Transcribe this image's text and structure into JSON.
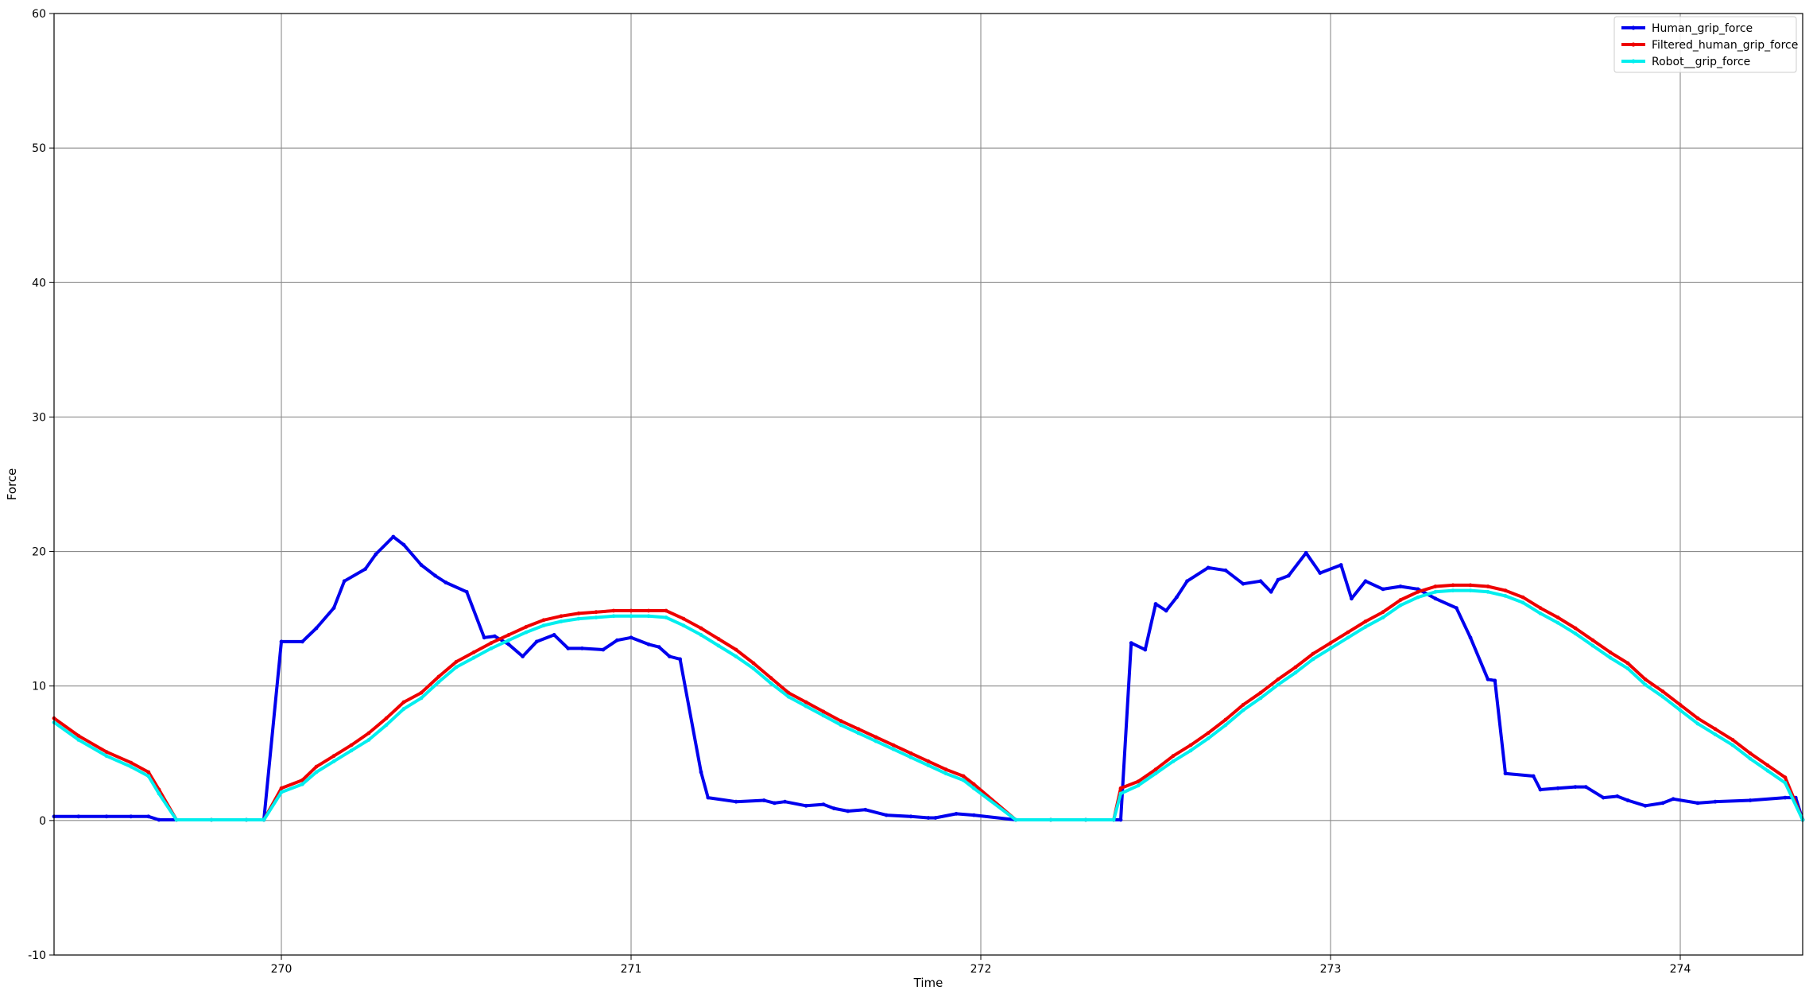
{
  "chart_data": {
    "type": "line",
    "title": "",
    "xlabel": "Time",
    "ylabel": "Force",
    "xlim": [
      269.35,
      274.35
    ],
    "ylim": [
      -10,
      60
    ],
    "xticks": [
      270,
      271,
      272,
      273,
      274
    ],
    "yticks": [
      -10,
      0,
      10,
      20,
      30,
      40,
      50,
      60
    ],
    "grid": true,
    "legend_position": "top-right",
    "series": [
      {
        "name": "Human_grip_force",
        "color": "#0000ee",
        "x": [
          269.35,
          269.42,
          269.5,
          269.57,
          269.62,
          269.65,
          269.7,
          269.8,
          269.9,
          269.95,
          270.0,
          270.06,
          270.1,
          270.15,
          270.18,
          270.24,
          270.27,
          270.32,
          270.35,
          270.4,
          270.44,
          270.47,
          270.53,
          270.58,
          270.61,
          270.65,
          270.69,
          270.73,
          270.78,
          270.82,
          270.86,
          270.92,
          270.96,
          271.0,
          271.05,
          271.08,
          271.11,
          271.14,
          271.2,
          271.22,
          271.3,
          271.38,
          271.41,
          271.44,
          271.5,
          271.55,
          271.58,
          271.62,
          271.67,
          271.73,
          271.8,
          271.85,
          271.87,
          271.93,
          271.98,
          272.1,
          272.2,
          272.3,
          272.38,
          272.4,
          272.43,
          272.47,
          272.5,
          272.53,
          272.56,
          272.59,
          272.65,
          272.7,
          272.75,
          272.8,
          272.83,
          272.85,
          272.88,
          272.93,
          272.97,
          273.03,
          273.06,
          273.1,
          273.15,
          273.2,
          273.25,
          273.3,
          273.36,
          273.4,
          273.45,
          273.47,
          273.5,
          273.58,
          273.6,
          273.65,
          273.7,
          273.73,
          273.78,
          273.82,
          273.85,
          273.9,
          273.95,
          273.98,
          274.05,
          274.1,
          274.2,
          274.3,
          274.33,
          274.35
        ],
        "values": [
          0.3,
          0.3,
          0.3,
          0.3,
          0.3,
          0.05,
          0.05,
          0.05,
          0.05,
          0.05,
          13.3,
          13.3,
          14.3,
          15.8,
          17.8,
          18.7,
          19.8,
          21.1,
          20.5,
          19.0,
          18.2,
          17.7,
          17.0,
          13.6,
          13.7,
          13.1,
          12.2,
          13.3,
          13.8,
          12.8,
          12.8,
          12.7,
          13.4,
          13.6,
          13.1,
          12.9,
          12.2,
          12.0,
          3.6,
          1.7,
          1.4,
          1.5,
          1.3,
          1.4,
          1.1,
          1.2,
          0.9,
          0.7,
          0.8,
          0.4,
          0.3,
          0.2,
          0.2,
          0.5,
          0.4,
          0.05,
          0.05,
          0.05,
          0.05,
          0.05,
          13.2,
          12.7,
          16.1,
          15.6,
          16.6,
          17.8,
          18.8,
          18.6,
          17.6,
          17.8,
          17.0,
          17.9,
          18.2,
          19.9,
          18.4,
          19.0,
          16.5,
          17.8,
          17.2,
          17.4,
          17.2,
          16.5,
          15.8,
          13.6,
          10.5,
          10.4,
          3.5,
          3.3,
          2.3,
          2.4,
          2.5,
          2.5,
          1.7,
          1.8,
          1.5,
          1.1,
          1.3,
          1.6,
          1.3,
          1.4,
          1.5,
          1.7,
          1.7,
          0.05
        ]
      },
      {
        "name": "Filtered_human_grip_force",
        "color": "#ee0000",
        "x": [
          269.35,
          269.42,
          269.5,
          269.57,
          269.62,
          269.65,
          269.7,
          269.8,
          269.9,
          269.95,
          270.0,
          270.06,
          270.1,
          270.15,
          270.2,
          270.25,
          270.3,
          270.35,
          270.4,
          270.45,
          270.5,
          270.55,
          270.6,
          270.65,
          270.7,
          270.75,
          270.8,
          270.85,
          270.9,
          270.95,
          271.0,
          271.05,
          271.1,
          271.15,
          271.2,
          271.25,
          271.3,
          271.35,
          271.4,
          271.45,
          271.5,
          271.55,
          271.6,
          271.65,
          271.7,
          271.75,
          271.8,
          271.85,
          271.9,
          271.95,
          271.98,
          272.1,
          272.2,
          272.3,
          272.38,
          272.4,
          272.45,
          272.5,
          272.55,
          272.6,
          272.65,
          272.7,
          272.75,
          272.8,
          272.85,
          272.9,
          272.95,
          273.0,
          273.05,
          273.1,
          273.15,
          273.2,
          273.25,
          273.3,
          273.35,
          273.4,
          273.45,
          273.5,
          273.55,
          273.6,
          273.65,
          273.7,
          273.75,
          273.8,
          273.85,
          273.9,
          273.95,
          274.0,
          274.05,
          274.1,
          274.15,
          274.2,
          274.25,
          274.3,
          274.35
        ],
        "values": [
          7.6,
          6.3,
          5.1,
          4.3,
          3.6,
          2.3,
          0.05,
          0.05,
          0.05,
          0.05,
          2.4,
          3.0,
          4.0,
          4.8,
          5.6,
          6.5,
          7.6,
          8.8,
          9.5,
          10.7,
          11.8,
          12.5,
          13.2,
          13.8,
          14.4,
          14.9,
          15.2,
          15.4,
          15.5,
          15.6,
          15.6,
          15.6,
          15.6,
          15.0,
          14.3,
          13.5,
          12.7,
          11.7,
          10.6,
          9.5,
          8.8,
          8.1,
          7.4,
          6.8,
          6.2,
          5.6,
          5.0,
          4.4,
          3.8,
          3.3,
          2.7,
          0.05,
          0.05,
          0.05,
          0.05,
          2.4,
          2.9,
          3.8,
          4.8,
          5.6,
          6.5,
          7.5,
          8.6,
          9.5,
          10.5,
          11.4,
          12.4,
          13.2,
          14.0,
          14.8,
          15.5,
          16.4,
          17.0,
          17.4,
          17.5,
          17.5,
          17.4,
          17.1,
          16.6,
          15.8,
          15.1,
          14.3,
          13.4,
          12.5,
          11.7,
          10.5,
          9.6,
          8.6,
          7.6,
          6.8,
          6.0,
          5.0,
          4.1,
          3.2,
          0.05
        ]
      },
      {
        "name": "Robot__grip_force",
        "color": "#00eeee",
        "x": [
          269.35,
          269.42,
          269.5,
          269.57,
          269.62,
          269.65,
          269.7,
          269.8,
          269.9,
          269.95,
          270.0,
          270.06,
          270.1,
          270.15,
          270.2,
          270.25,
          270.3,
          270.35,
          270.4,
          270.45,
          270.5,
          270.55,
          270.6,
          270.65,
          270.7,
          270.75,
          270.8,
          270.85,
          270.9,
          270.95,
          271.0,
          271.05,
          271.1,
          271.15,
          271.2,
          271.25,
          271.3,
          271.35,
          271.4,
          271.45,
          271.5,
          271.55,
          271.6,
          271.65,
          271.7,
          271.75,
          271.8,
          271.85,
          271.9,
          271.95,
          271.98,
          272.1,
          272.2,
          272.3,
          272.38,
          272.4,
          272.45,
          272.5,
          272.55,
          272.6,
          272.65,
          272.7,
          272.75,
          272.8,
          272.85,
          272.9,
          272.95,
          273.0,
          273.05,
          273.1,
          273.15,
          273.2,
          273.25,
          273.3,
          273.35,
          273.4,
          273.45,
          273.5,
          273.55,
          273.6,
          273.65,
          273.7,
          273.75,
          273.8,
          273.85,
          273.9,
          273.95,
          274.0,
          274.05,
          274.1,
          274.15,
          274.2,
          274.25,
          274.3,
          274.35
        ],
        "values": [
          7.3,
          6.0,
          4.8,
          4.0,
          3.3,
          2.0,
          0.05,
          0.05,
          0.05,
          0.05,
          2.1,
          2.7,
          3.6,
          4.4,
          5.2,
          6.0,
          7.1,
          8.3,
          9.1,
          10.3,
          11.4,
          12.1,
          12.8,
          13.4,
          14.0,
          14.5,
          14.8,
          15.0,
          15.1,
          15.2,
          15.2,
          15.2,
          15.1,
          14.5,
          13.8,
          13.0,
          12.2,
          11.3,
          10.2,
          9.2,
          8.5,
          7.8,
          7.1,
          6.5,
          5.9,
          5.3,
          4.7,
          4.1,
          3.5,
          3.0,
          2.4,
          0.05,
          0.05,
          0.05,
          0.05,
          2.0,
          2.6,
          3.5,
          4.4,
          5.2,
          6.1,
          7.1,
          8.2,
          9.1,
          10.1,
          11.0,
          12.0,
          12.8,
          13.6,
          14.4,
          15.1,
          16.0,
          16.6,
          17.0,
          17.1,
          17.1,
          17.0,
          16.7,
          16.2,
          15.4,
          14.7,
          13.9,
          13.0,
          12.1,
          11.3,
          10.1,
          9.2,
          8.2,
          7.2,
          6.4,
          5.6,
          4.6,
          3.7,
          2.8,
          0.05
        ]
      }
    ]
  }
}
